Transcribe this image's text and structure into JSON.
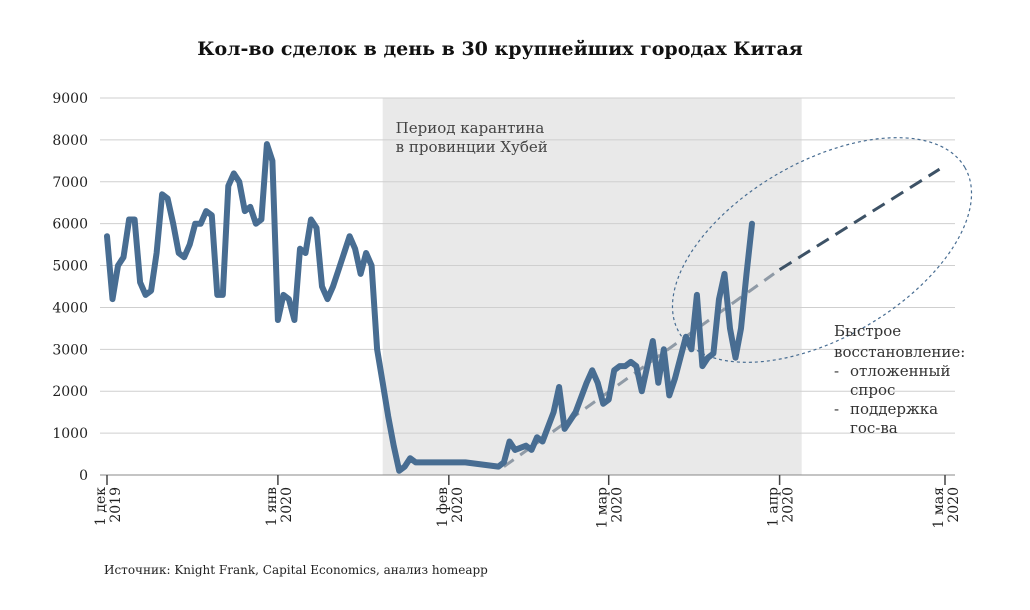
{
  "chart_data": {
    "type": "line",
    "title": "Кол-во сделок в день в 30 крупнейших городах Китая",
    "xlabel": "",
    "ylabel": "",
    "ylim": [
      0,
      9000
    ],
    "y_ticks": [
      0,
      1000,
      2000,
      3000,
      4000,
      5000,
      6000,
      7000,
      8000,
      9000
    ],
    "x_range": [
      "2019-12-01",
      "2020-05-01"
    ],
    "x_ticks": [
      {
        "date": "2019-12-01",
        "line1": "1 дек",
        "line2": "2019"
      },
      {
        "date": "2020-01-01",
        "line1": "1 янв",
        "line2": "2020"
      },
      {
        "date": "2020-02-01",
        "line1": "1 фев",
        "line2": "2020"
      },
      {
        "date": "2020-03-01",
        "line1": "1 мар",
        "line2": "2020"
      },
      {
        "date": "2020-04-01",
        "line1": "1 апр",
        "line2": "2020"
      },
      {
        "date": "2020-05-01",
        "line1": "1 мая",
        "line2": "2020"
      }
    ],
    "grid": true,
    "quarantine": {
      "start": "2020-01-20",
      "end": "2020-04-05",
      "label_line1": "Период карантина",
      "label_line2": "в провинции Хубей",
      "color": "#e9e9e9"
    },
    "series": [
      {
        "color": "#486d92",
        "points": [
          [
            "2019-12-01",
            5700
          ],
          [
            "2019-12-02",
            4200
          ],
          [
            "2019-12-03",
            5000
          ],
          [
            "2019-12-04",
            5200
          ],
          [
            "2019-12-05",
            6100
          ],
          [
            "2019-12-06",
            6100
          ],
          [
            "2019-12-07",
            4600
          ],
          [
            "2019-12-08",
            4300
          ],
          [
            "2019-12-09",
            4400
          ],
          [
            "2019-12-10",
            5300
          ],
          [
            "2019-12-11",
            6700
          ],
          [
            "2019-12-12",
            6600
          ],
          [
            "2019-12-13",
            6000
          ],
          [
            "2019-12-14",
            5300
          ],
          [
            "2019-12-15",
            5200
          ],
          [
            "2019-12-16",
            5500
          ],
          [
            "2019-12-17",
            6000
          ],
          [
            "2019-12-18",
            6000
          ],
          [
            "2019-12-19",
            6300
          ],
          [
            "2019-12-20",
            6200
          ],
          [
            "2019-12-21",
            4300
          ],
          [
            "2019-12-22",
            4300
          ],
          [
            "2019-12-23",
            6900
          ],
          [
            "2019-12-24",
            7200
          ],
          [
            "2019-12-25",
            7000
          ],
          [
            "2019-12-26",
            6300
          ],
          [
            "2019-12-27",
            6400
          ],
          [
            "2019-12-28",
            6000
          ],
          [
            "2019-12-29",
            6100
          ],
          [
            "2019-12-30",
            7900
          ],
          [
            "2019-12-31",
            7500
          ],
          [
            "2020-01-01",
            3700
          ],
          [
            "2020-01-02",
            4300
          ],
          [
            "2020-01-03",
            4200
          ],
          [
            "2020-01-04",
            3700
          ],
          [
            "2020-01-05",
            5400
          ],
          [
            "2020-01-06",
            5300
          ],
          [
            "2020-01-07",
            6100
          ],
          [
            "2020-01-08",
            5900
          ],
          [
            "2020-01-09",
            4500
          ],
          [
            "2020-01-10",
            4200
          ],
          [
            "2020-01-11",
            4500
          ],
          [
            "2020-01-12",
            4900
          ],
          [
            "2020-01-13",
            5300
          ],
          [
            "2020-01-14",
            5700
          ],
          [
            "2020-01-15",
            5400
          ],
          [
            "2020-01-16",
            4800
          ],
          [
            "2020-01-17",
            5300
          ],
          [
            "2020-01-18",
            5000
          ],
          [
            "2020-01-19",
            3000
          ],
          [
            "2020-01-20",
            2200
          ],
          [
            "2020-01-21",
            1400
          ],
          [
            "2020-01-22",
            700
          ],
          [
            "2020-01-23",
            100
          ],
          [
            "2020-01-24",
            200
          ],
          [
            "2020-01-25",
            400
          ],
          [
            "2020-01-26",
            300
          ],
          [
            "2020-01-28",
            300
          ],
          [
            "2020-02-01",
            300
          ],
          [
            "2020-02-04",
            300
          ],
          [
            "2020-02-07",
            250
          ],
          [
            "2020-02-10",
            200
          ],
          [
            "2020-02-11",
            300
          ],
          [
            "2020-02-12",
            800
          ],
          [
            "2020-02-13",
            600
          ],
          [
            "2020-02-15",
            700
          ],
          [
            "2020-02-16",
            600
          ],
          [
            "2020-02-17",
            900
          ],
          [
            "2020-02-18",
            800
          ],
          [
            "2020-02-20",
            1500
          ],
          [
            "2020-02-21",
            2100
          ],
          [
            "2020-02-22",
            1100
          ],
          [
            "2020-02-24",
            1500
          ],
          [
            "2020-02-26",
            2200
          ],
          [
            "2020-02-27",
            2500
          ],
          [
            "2020-02-28",
            2200
          ],
          [
            "2020-02-29",
            1700
          ],
          [
            "2020-03-01",
            1800
          ],
          [
            "2020-03-02",
            2500
          ],
          [
            "2020-03-03",
            2600
          ],
          [
            "2020-03-04",
            2600
          ],
          [
            "2020-03-05",
            2700
          ],
          [
            "2020-03-06",
            2600
          ],
          [
            "2020-03-07",
            2000
          ],
          [
            "2020-03-08",
            2600
          ],
          [
            "2020-03-09",
            3200
          ],
          [
            "2020-03-10",
            2200
          ],
          [
            "2020-03-11",
            3000
          ],
          [
            "2020-03-12",
            1900
          ],
          [
            "2020-03-13",
            2300
          ],
          [
            "2020-03-14",
            2800
          ],
          [
            "2020-03-15",
            3300
          ],
          [
            "2020-03-16",
            3000
          ],
          [
            "2020-03-17",
            4300
          ],
          [
            "2020-03-18",
            2600
          ],
          [
            "2020-03-19",
            2800
          ],
          [
            "2020-03-20",
            2900
          ],
          [
            "2020-03-21",
            4200
          ],
          [
            "2020-03-22",
            4800
          ],
          [
            "2020-03-23",
            3500
          ],
          [
            "2020-03-24",
            2800
          ],
          [
            "2020-03-25",
            3500
          ],
          [
            "2020-03-26",
            4800
          ],
          [
            "2020-03-27",
            6000
          ]
        ]
      }
    ],
    "trend": {
      "color": "#8f9aa6",
      "points": [
        [
          "2020-02-11",
          200
        ],
        [
          "2020-04-01",
          4900
        ]
      ]
    },
    "forecast": {
      "color": "#3d5266",
      "points": [
        [
          "2020-04-01",
          4900
        ],
        [
          "2020-04-30",
          7300
        ]
      ]
    },
    "annotation": {
      "title_line1": "Быстрое",
      "title_line2": "восстановление:",
      "bullets": [
        {
          "marker": "-",
          "lines": [
            "отложенный",
            "спрос"
          ]
        },
        {
          "marker": "-",
          "lines": [
            "поддержка",
            "гос-ва"
          ]
        }
      ]
    },
    "source": "Источник: Knight Frank, Capital Economics, анализ homeapp"
  }
}
